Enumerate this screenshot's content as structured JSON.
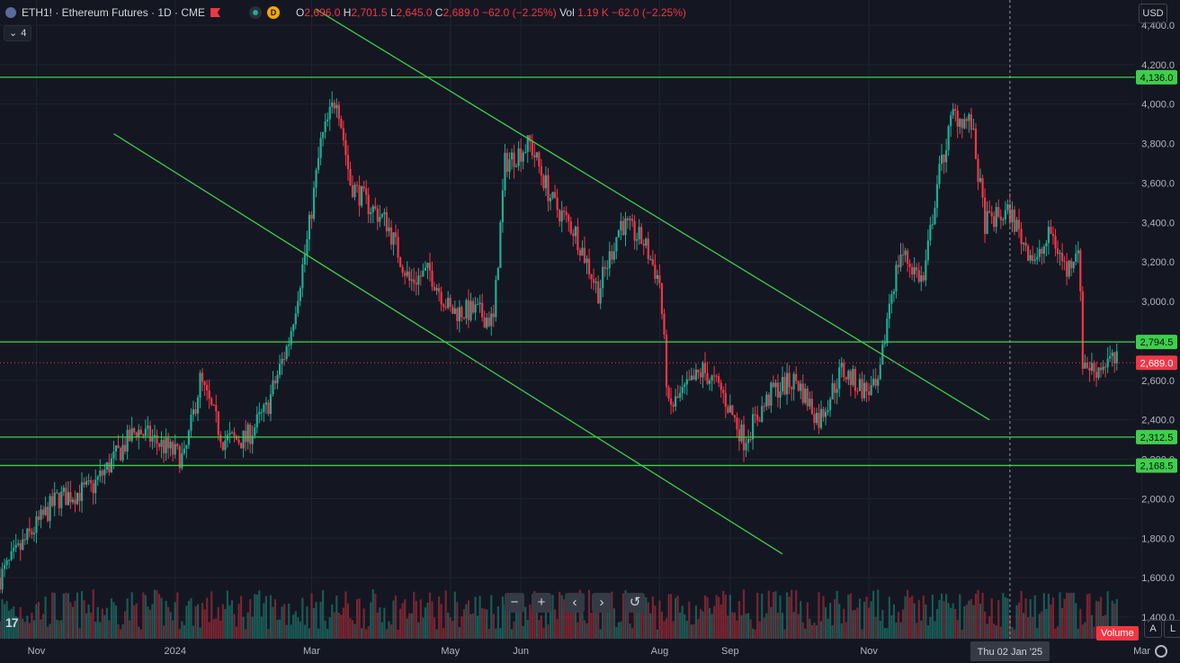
{
  "header": {
    "title": "ETH1! · Ethereum Futures · 1D · CME",
    "d_badge": "D",
    "open_label": "O",
    "open": "2,696.0",
    "high_label": "H",
    "high": "2,701.5",
    "low_label": "L",
    "low": "2,645.0",
    "close_label": "C",
    "close": "2,689.0",
    "change": "−62.0 (−2.25%)",
    "vol_label": "Vol",
    "vol": "1.19 K",
    "vol_change": "−62.0 (−2.25%)"
  },
  "indicator_count": "4",
  "currency": "USD",
  "volume_tag": "Volume",
  "auto_buttons": [
    "A",
    "L"
  ],
  "colors": {
    "background": "#141722",
    "up": "#22ab94",
    "down": "#f23645",
    "level": "#3ecf4a",
    "grid": "#1f2330"
  },
  "chart_data": {
    "type": "candlestick",
    "y_axis": {
      "min": 1400,
      "max": 4400,
      "step": 200,
      "scale": "linear"
    },
    "x_axis_labels": [
      "Nov",
      "2024",
      "Mar",
      "May",
      "Jun",
      "Aug",
      "Sep",
      "Nov",
      "Mar"
    ],
    "x_label_dates": [
      "2023-11-01",
      "2024-01-01",
      "2024-03-01",
      "2024-05-01",
      "2024-06-01",
      "2024-08-01",
      "2024-09-01",
      "2024-11-01",
      "2025-03-01"
    ],
    "x_range": [
      "2023-10-16",
      "2025-02-26"
    ],
    "crosshair": {
      "date": "2025-01-02",
      "label": "Thu 02 Jan '25"
    },
    "levels": [
      {
        "price": 4136.0,
        "label": "4,136.0"
      },
      {
        "price": 2794.5,
        "label": "2,794.5"
      },
      {
        "price": 2312.5,
        "label": "2,312.5"
      },
      {
        "price": 2168.5,
        "label": "2,168.5"
      }
    ],
    "last_price": {
      "price": 2689.0,
      "label": "2,689.0"
    },
    "trendlines": [
      {
        "from": {
          "date": "2024-03-03",
          "price": 4480
        },
        "to": {
          "date": "2024-12-24",
          "price": 2400
        }
      },
      {
        "from": {
          "date": "2023-12-05",
          "price": 3850
        },
        "to": {
          "date": "2024-09-24",
          "price": 1720
        }
      }
    ],
    "price_path": [
      [
        "2023-10-16",
        1600
      ],
      [
        "2023-10-28",
        1800
      ],
      [
        "2023-11-10",
        2000
      ],
      [
        "2023-11-25",
        2050
      ],
      [
        "2023-12-05",
        2200
      ],
      [
        "2023-12-15",
        2350
      ],
      [
        "2023-12-25",
        2280
      ],
      [
        "2024-01-05",
        2200
      ],
      [
        "2024-01-12",
        2600
      ],
      [
        "2024-01-22",
        2300
      ],
      [
        "2024-02-01",
        2300
      ],
      [
        "2024-02-10",
        2450
      ],
      [
        "2024-02-20",
        2800
      ],
      [
        "2024-02-28",
        3300
      ],
      [
        "2024-03-05",
        3800
      ],
      [
        "2024-03-12",
        4050
      ],
      [
        "2024-03-18",
        3600
      ],
      [
        "2024-03-25",
        3500
      ],
      [
        "2024-04-03",
        3400
      ],
      [
        "2024-04-13",
        3100
      ],
      [
        "2024-04-22",
        3150
      ],
      [
        "2024-05-01",
        2950
      ],
      [
        "2024-05-12",
        2950
      ],
      [
        "2024-05-20",
        2900
      ],
      [
        "2024-05-25",
        3700
      ],
      [
        "2024-06-05",
        3800
      ],
      [
        "2024-06-15",
        3500
      ],
      [
        "2024-06-25",
        3350
      ],
      [
        "2024-07-05",
        3050
      ],
      [
        "2024-07-15",
        3400
      ],
      [
        "2024-07-25",
        3300
      ],
      [
        "2024-08-01",
        3100
      ],
      [
        "2024-08-05",
        2450
      ],
      [
        "2024-08-20",
        2650
      ],
      [
        "2024-08-28",
        2550
      ],
      [
        "2024-09-07",
        2300
      ],
      [
        "2024-09-20",
        2550
      ],
      [
        "2024-09-30",
        2600
      ],
      [
        "2024-10-10",
        2400
      ],
      [
        "2024-10-20",
        2650
      ],
      [
        "2024-10-30",
        2550
      ],
      [
        "2024-11-05",
        2550
      ],
      [
        "2024-11-10",
        3000
      ],
      [
        "2024-11-15",
        3250
      ],
      [
        "2024-11-25",
        3100
      ],
      [
        "2024-12-01",
        3600
      ],
      [
        "2024-12-08",
        3950
      ],
      [
        "2024-12-16",
        3900
      ],
      [
        "2024-12-22",
        3400
      ],
      [
        "2025-01-02",
        3450
      ],
      [
        "2025-01-08",
        3300
      ],
      [
        "2025-01-14",
        3200
      ],
      [
        "2025-01-20",
        3350
      ],
      [
        "2025-01-27",
        3150
      ],
      [
        "2025-02-01",
        3300
      ],
      [
        "2025-02-03",
        2700
      ],
      [
        "2025-02-08",
        2650
      ],
      [
        "2025-02-14",
        2700
      ],
      [
        "2025-02-18",
        2689
      ]
    ]
  }
}
